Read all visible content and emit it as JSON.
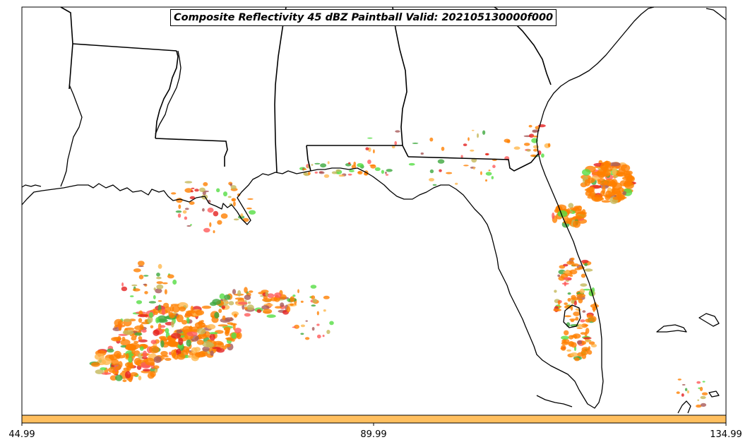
{
  "title": "Composite Reflectivity 45 dBZ Paintball Valid: 202105130000f000",
  "colorbar": {
    "ticks": [
      "44.99",
      "89.99",
      "134.99"
    ],
    "color": "#ffbf5f"
  },
  "member_colors": [
    "#ff7f00",
    "#55dd44",
    "#c4b85a",
    "#ff5a5a",
    "#a85a5a",
    "#e32020",
    "#ffb84d",
    "#3da83d"
  ],
  "map": {
    "region": "Gulf Coast and Florida",
    "features": [
      "coastlines",
      "state-borders"
    ],
    "data_field": "Composite Reflectivity 45 dBZ paintball"
  }
}
